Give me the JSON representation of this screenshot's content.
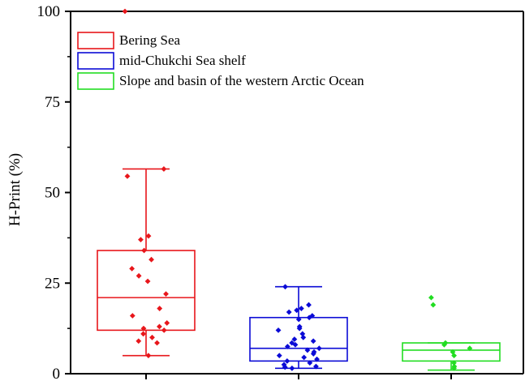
{
  "chart_data": {
    "type": "box",
    "title": "",
    "xlabel": "",
    "ylabel": "H-Print (%)",
    "ylim": [
      0,
      100
    ],
    "yticks": [
      "0",
      "25",
      "50",
      "75",
      "100"
    ],
    "grid": false,
    "legend_position": "top-left",
    "series": [
      {
        "name": "Bering Sea",
        "color": "#e8161b",
        "box": {
          "min": 5,
          "q1": 12,
          "median": 21,
          "q3": 34,
          "max": 56.5
        },
        "points": [
          100,
          56.5,
          54.5,
          38,
          37,
          34,
          31.5,
          29,
          27,
          25.5,
          22,
          18,
          16,
          14,
          13,
          12.5,
          12,
          11,
          10,
          9,
          8.5,
          5
        ]
      },
      {
        "name": "mid-Chukchi Sea shelf",
        "color": "#0b0bd6",
        "box": {
          "min": 1.5,
          "q1": 3.5,
          "median": 7,
          "q3": 15.5,
          "max": 24
        },
        "points": [
          24,
          19,
          18,
          17.5,
          17,
          16,
          15.5,
          15,
          13,
          12.5,
          12,
          11,
          10,
          9.5,
          9,
          8.5,
          8,
          7.5,
          7,
          6.5,
          6,
          5.5,
          5,
          4.5,
          4,
          3.5,
          3,
          2.5,
          2,
          1.8,
          1.5
        ]
      },
      {
        "name": "Slope and basin of the western Arctic Ocean",
        "color": "#22dd22",
        "box": {
          "min": 1,
          "q1": 3.5,
          "median": 6.5,
          "q3": 8.5,
          "max": 8.5
        },
        "points": [
          21,
          19,
          8.5,
          8,
          7,
          6,
          5,
          3,
          2,
          1.5
        ]
      }
    ]
  }
}
